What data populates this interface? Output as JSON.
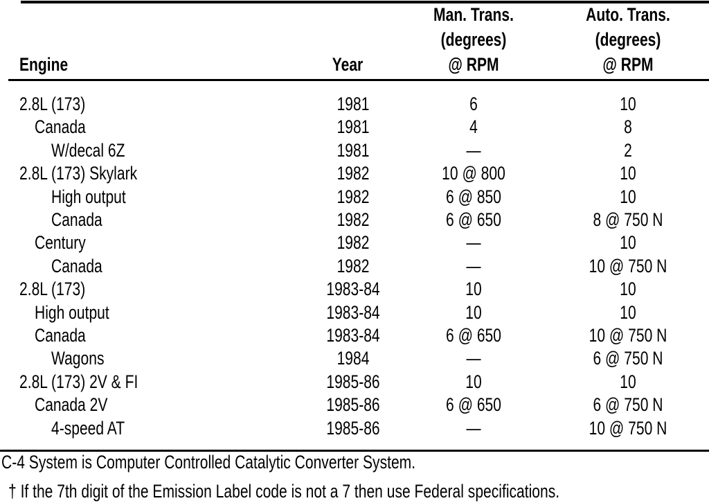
{
  "header": {
    "engine": "Engine",
    "year": "Year",
    "man_trans": [
      "Man. Trans.",
      "(degrees)",
      "@ RPM"
    ],
    "auto_trans": [
      "Auto. Trans.",
      "(degrees)",
      "@ RPM"
    ]
  },
  "rows": [
    {
      "engine": "2.8L (173)",
      "indent": 0,
      "year": "1981",
      "man": "6",
      "auto": "10"
    },
    {
      "engine": "Canada",
      "indent": 1,
      "year": "1981",
      "man": "4",
      "auto": "8"
    },
    {
      "engine": "W/decal 6Z",
      "indent": 2,
      "year": "1981",
      "man": "—",
      "auto": "2"
    },
    {
      "engine": "2.8L (173) Skylark",
      "indent": 0,
      "year": "1982",
      "man": "10 @ 800",
      "auto": "10"
    },
    {
      "engine": "High output",
      "indent": 2,
      "year": "1982",
      "man": "6 @ 850",
      "auto": "10"
    },
    {
      "engine": "Canada",
      "indent": 2,
      "year": "1982",
      "man": "6 @ 650",
      "auto": "8 @ 750 N"
    },
    {
      "engine": "Century",
      "indent": 1,
      "year": "1982",
      "man": "—",
      "auto": "10"
    },
    {
      "engine": "Canada",
      "indent": 2,
      "year": "1982",
      "man": "—",
      "auto": "10 @ 750 N"
    },
    {
      "engine": "2.8L (173)",
      "indent": 0,
      "year": "1983-84",
      "man": "10",
      "auto": "10"
    },
    {
      "engine": "High output",
      "indent": 1,
      "year": "1983-84",
      "man": "10",
      "auto": "10"
    },
    {
      "engine": "Canada",
      "indent": 1,
      "year": "1983-84",
      "man": "6 @ 650",
      "auto": "10 @ 750 N"
    },
    {
      "engine": "Wagons",
      "indent": 2,
      "year": "1984",
      "man": "—",
      "auto": "6 @ 750 N"
    },
    {
      "engine": "2.8L (173) 2V & FI",
      "indent": 0,
      "year": "1985-86",
      "man": "10",
      "auto": "10"
    },
    {
      "engine": "Canada 2V",
      "indent": 1,
      "year": "1985-86",
      "man": "6 @ 650",
      "auto": "6 @ 750 N"
    },
    {
      "engine": "4-speed AT",
      "indent": 2,
      "year": "1985-86",
      "man": "—",
      "auto": "10 @ 750 N"
    }
  ],
  "footnotes": [
    "C-4 System is Computer Controlled Catalytic Converter System.",
    "† If the 7th digit of the Emission Label code is not a 7 then use Federal specifications."
  ]
}
